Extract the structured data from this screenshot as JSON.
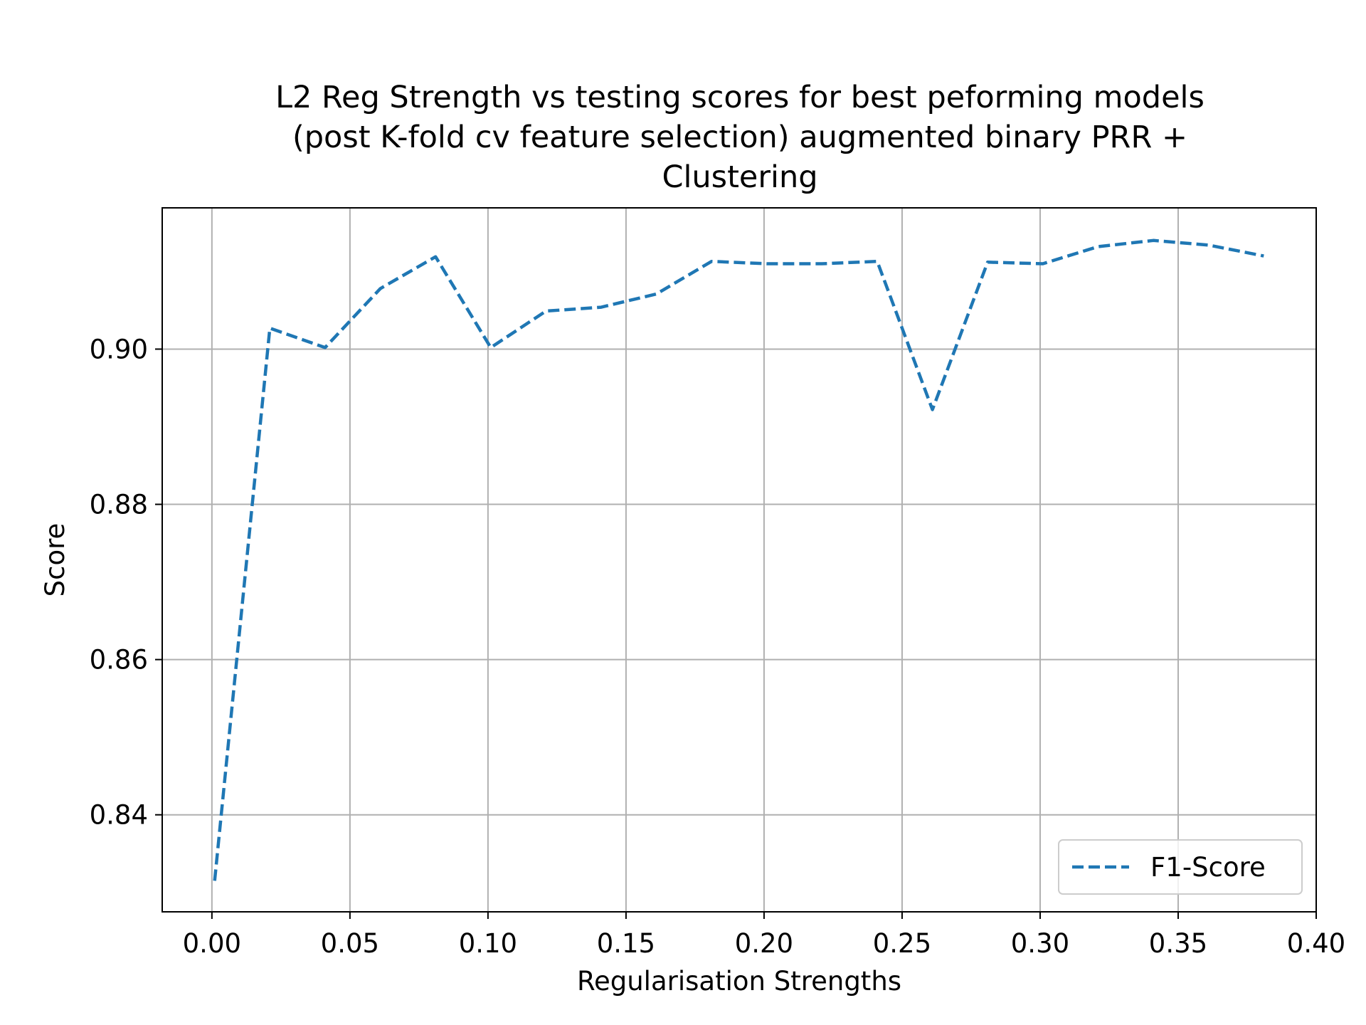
{
  "chart_data": {
    "type": "line",
    "title_lines": [
      "L2 Reg Strength vs testing scores for best peforming models",
      "(post K-fold cv feature selection) augmented binary PRR +",
      "Clustering"
    ],
    "xlabel": "Regularisation Strengths",
    "ylabel": "Score",
    "xlim": [
      -0.018,
      0.4
    ],
    "ylim": [
      0.8275,
      0.9182
    ],
    "x_ticks": [
      0.0,
      0.05,
      0.1,
      0.15,
      0.2,
      0.25,
      0.3,
      0.35,
      0.4
    ],
    "x_tick_labels": [
      "0.00",
      "0.05",
      "0.10",
      "0.15",
      "0.20",
      "0.25",
      "0.30",
      "0.35",
      "0.40"
    ],
    "y_ticks": [
      0.84,
      0.86,
      0.88,
      0.9
    ],
    "y_tick_labels": [
      "0.84",
      "0.86",
      "0.88",
      "0.90"
    ],
    "grid": true,
    "legend_position": "lower-right",
    "series": [
      {
        "name": "F1-Score",
        "color": "#1f77b4",
        "line_style": "dashed",
        "x": [
          0.001,
          0.021,
          0.041,
          0.061,
          0.081,
          0.101,
          0.121,
          0.141,
          0.161,
          0.181,
          0.201,
          0.221,
          0.241,
          0.261,
          0.281,
          0.301,
          0.321,
          0.341,
          0.361,
          0.381
        ],
        "y": [
          0.8315,
          0.9027,
          0.9002,
          0.9078,
          0.9119,
          0.9002,
          0.9049,
          0.9054,
          0.9071,
          0.9113,
          0.911,
          0.911,
          0.9113,
          0.8922,
          0.9112,
          0.911,
          0.9132,
          0.914,
          0.9134,
          0.912
        ]
      }
    ]
  }
}
